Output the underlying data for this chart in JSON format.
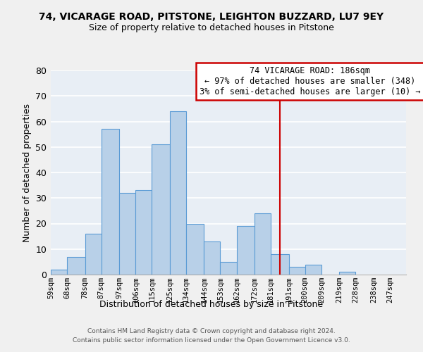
{
  "title": "74, VICARAGE ROAD, PITSTONE, LEIGHTON BUZZARD, LU7 9EY",
  "subtitle": "Size of property relative to detached houses in Pitstone",
  "xlabel": "Distribution of detached houses by size in Pitstone",
  "ylabel": "Number of detached properties",
  "bin_labels": [
    "59sqm",
    "68sqm",
    "78sqm",
    "87sqm",
    "97sqm",
    "106sqm",
    "115sqm",
    "125sqm",
    "134sqm",
    "144sqm",
    "153sqm",
    "162sqm",
    "172sqm",
    "181sqm",
    "191sqm",
    "200sqm",
    "209sqm",
    "219sqm",
    "228sqm",
    "238sqm",
    "247sqm"
  ],
  "bar_heights": [
    2,
    7,
    16,
    57,
    32,
    33,
    51,
    64,
    20,
    13,
    5,
    19,
    24,
    8,
    3,
    4,
    0,
    1,
    0,
    0,
    0
  ],
  "bar_color": "#b8d0e8",
  "bar_edge_color": "#5b9bd5",
  "bin_edges": [
    59,
    68,
    78,
    87,
    97,
    106,
    115,
    125,
    134,
    144,
    153,
    162,
    172,
    181,
    191,
    200,
    209,
    219,
    228,
    238,
    247
  ],
  "vline_x": 186,
  "vline_color": "#cc0000",
  "annotation_title": "74 VICARAGE ROAD: 186sqm",
  "annotation_line1": "← 97% of detached houses are smaller (348)",
  "annotation_line2": "3% of semi-detached houses are larger (10) →",
  "ylim": [
    0,
    80
  ],
  "yticks": [
    0,
    10,
    20,
    30,
    40,
    50,
    60,
    70,
    80
  ],
  "footer_line1": "Contains HM Land Registry data © Crown copyright and database right 2024.",
  "footer_line2": "Contains public sector information licensed under the Open Government Licence v3.0.",
  "background_color": "#f0f0f0",
  "plot_bg_color": "#e8eef5"
}
